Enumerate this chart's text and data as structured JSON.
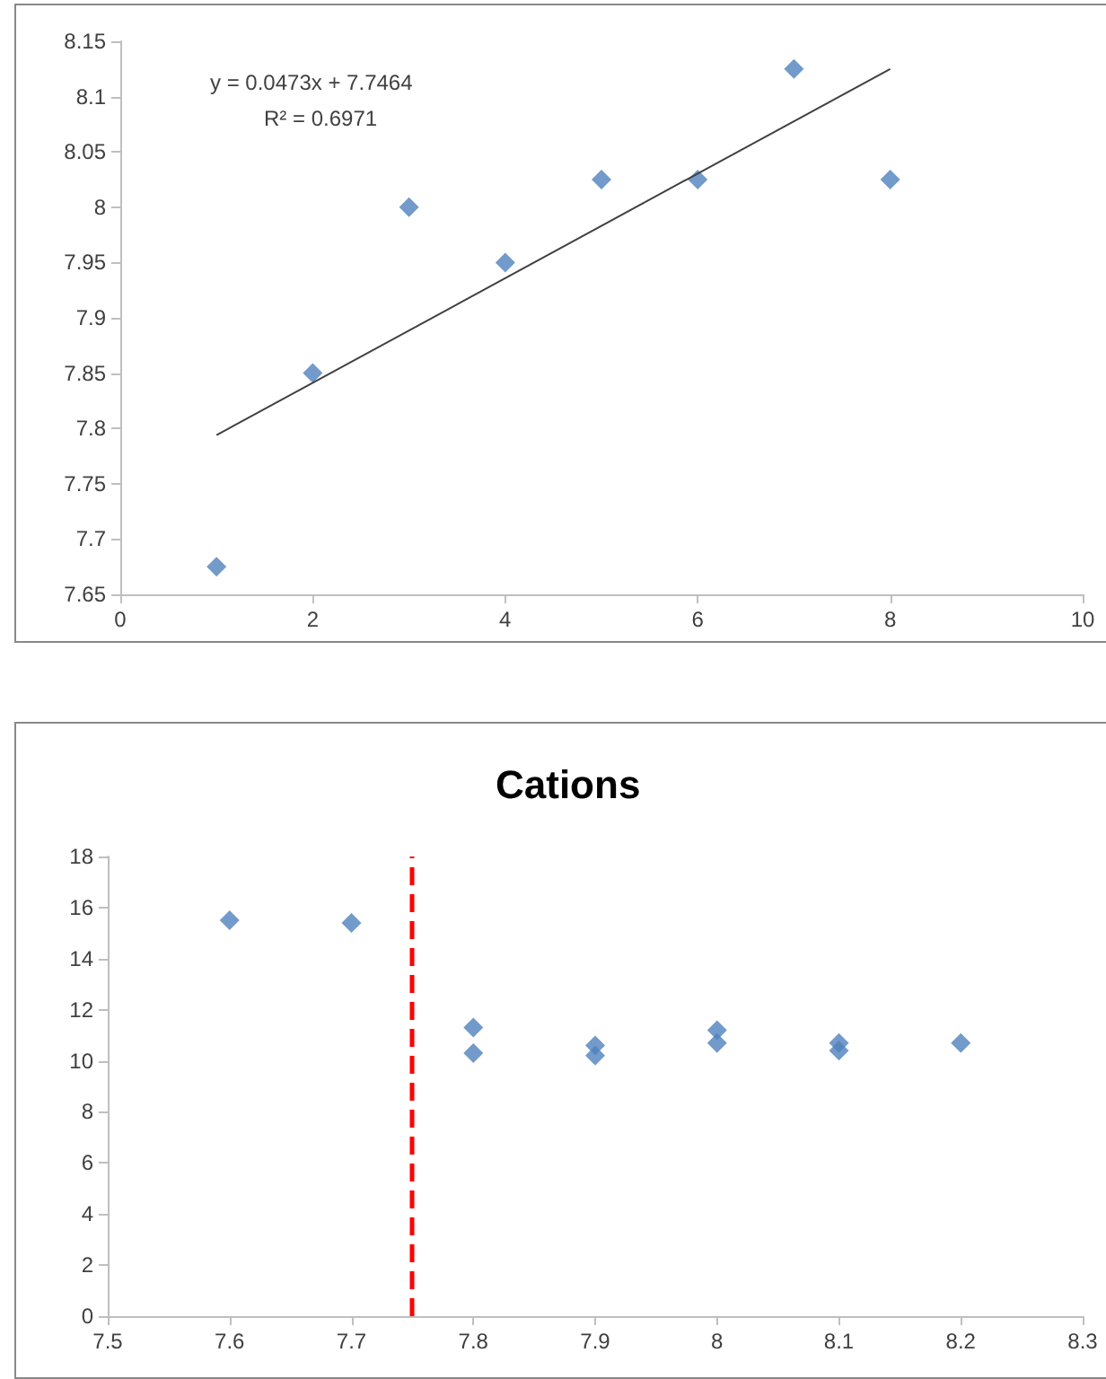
{
  "chart_data": [
    {
      "type": "scatter",
      "marker": "diamond",
      "xlim": [
        0,
        10
      ],
      "xticks": [
        0,
        2,
        4,
        6,
        8,
        10
      ],
      "ylim": [
        7.65,
        8.15
      ],
      "yticks": [
        7.65,
        7.7,
        7.75,
        7.8,
        7.85,
        7.9,
        7.95,
        8,
        8.05,
        8.1,
        8.15
      ],
      "annotations": [
        "y = 0.0473x + 7.7464",
        "R² = 0.6971"
      ],
      "series": [
        {
          "color": "#4f81bd",
          "x": [
            1,
            2,
            3,
            4,
            5,
            6,
            7,
            8
          ],
          "values": [
            7.675,
            7.85,
            8.0,
            7.95,
            8.025,
            8.025,
            8.125,
            8.025
          ]
        },
        {
          "type": "line",
          "marker": "none",
          "color": "#404040",
          "x": [
            1,
            8
          ],
          "values": [
            7.794,
            8.125
          ]
        }
      ]
    },
    {
      "type": "scatter",
      "title": "Cations",
      "marker": "diamond",
      "xlim": [
        7.5,
        8.3
      ],
      "xticks": [
        7.5,
        7.6,
        7.7,
        7.8,
        7.9,
        8,
        8.1,
        8.2,
        8.3
      ],
      "ylim": [
        0,
        18
      ],
      "yticks": [
        0,
        2,
        4,
        6,
        8,
        10,
        12,
        14,
        16,
        18
      ],
      "ref_lines": [
        {
          "axis": "x",
          "value": 7.75,
          "color": "#ff0000",
          "line_style": "dashed"
        }
      ],
      "series": [
        {
          "color": "#4f81bd",
          "x": [
            7.6,
            7.7,
            7.8,
            7.8,
            7.9,
            7.9,
            8,
            8,
            8.1,
            8.1,
            8.2
          ],
          "values": [
            15.5,
            15.4,
            11.3,
            10.3,
            10.6,
            10.2,
            11.2,
            10.7,
            10.7,
            10.4,
            10.7
          ]
        }
      ]
    }
  ]
}
